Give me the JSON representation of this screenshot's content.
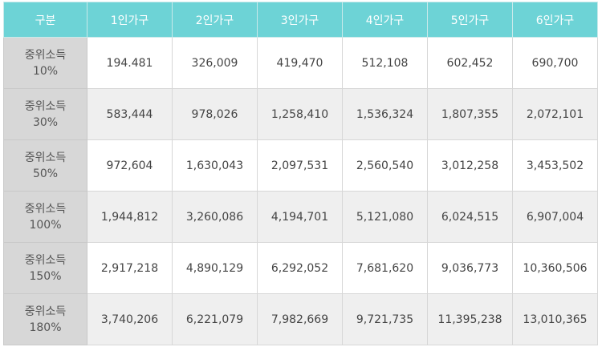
{
  "table": {
    "headers": [
      "구분",
      "1인가구",
      "2인가구",
      "3인가구",
      "4인가구",
      "5인가구",
      "6인가구"
    ],
    "rows": [
      {
        "label_line1": "중위소득",
        "label_line2": "10%",
        "values": [
          "194.481",
          "326,009",
          "419,470",
          "512,108",
          "602,452",
          "690,700"
        ]
      },
      {
        "label_line1": "중위소득",
        "label_line2": "30%",
        "values": [
          "583,444",
          "978,026",
          "1,258,410",
          "1,536,324",
          "1,807,355",
          "2,072,101"
        ]
      },
      {
        "label_line1": "중위소득",
        "label_line2": "50%",
        "values": [
          "972,604",
          "1,630,043",
          "2,097,531",
          "2,560,540",
          "3,012,258",
          "3,453,502"
        ]
      },
      {
        "label_line1": "중위소득",
        "label_line2": "100%",
        "values": [
          "1,944,812",
          "3,260,086",
          "4,194,701",
          "5,121,080",
          "6,024,515",
          "6,907,004"
        ]
      },
      {
        "label_line1": "중위소득",
        "label_line2": "150%",
        "values": [
          "2,917,218",
          "4,890,129",
          "6,292,052",
          "7,681,620",
          "9,036,773",
          "10,360,506"
        ]
      },
      {
        "label_line1": "중위소득",
        "label_line2": "180%",
        "values": [
          "3,740,206",
          "6,221,079",
          "7,982,669",
          "9,721,735",
          "11,395,238",
          "13,010,365"
        ]
      }
    ]
  },
  "colors": {
    "header_bg": "#6dd3d6",
    "row_label_bg": "#d7d7d7",
    "alt_row_bg": "#efefef"
  }
}
